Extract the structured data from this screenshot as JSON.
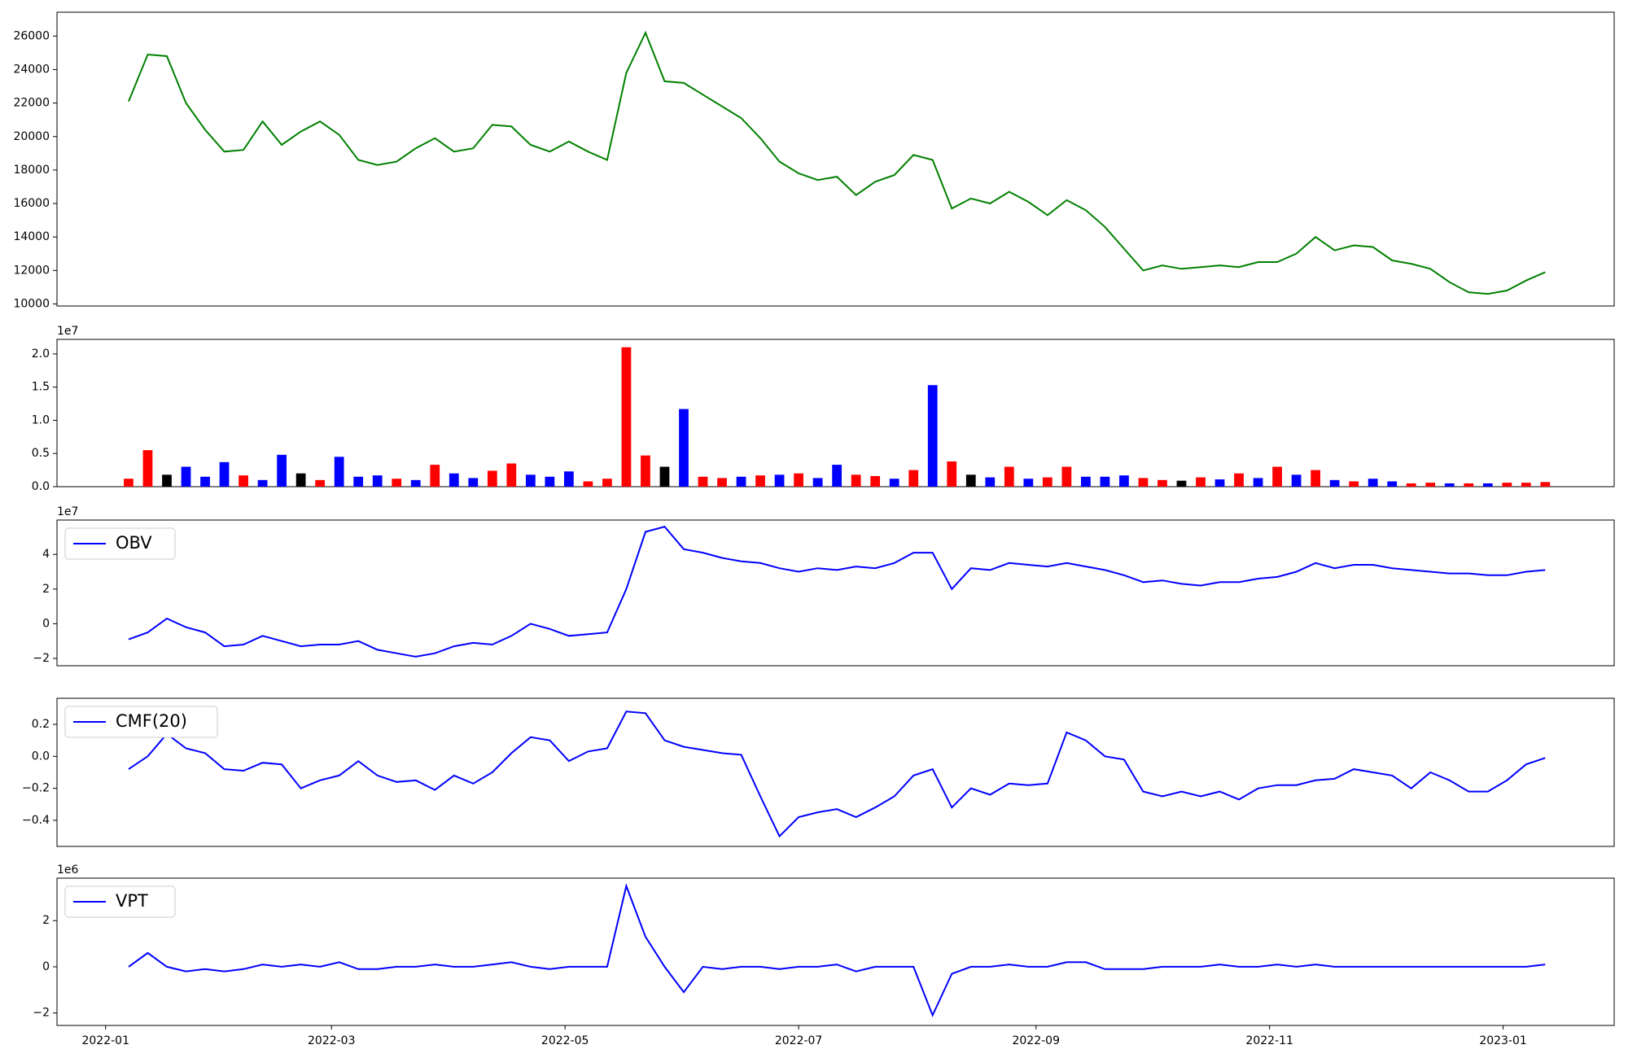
{
  "chart_data": [
    {
      "type": "line",
      "x": [
        6,
        11,
        16,
        21,
        26,
        31,
        36,
        41,
        46,
        51,
        56,
        61,
        66,
        71,
        76,
        81,
        86,
        91,
        96,
        101,
        106,
        111,
        116,
        121,
        126,
        131,
        136,
        141,
        146,
        151,
        156,
        161,
        166,
        171,
        176,
        181,
        186,
        191,
        196,
        201,
        206,
        211,
        216,
        221,
        226,
        231,
        236,
        241,
        246,
        251,
        256,
        261,
        266,
        271,
        276,
        281,
        286,
        291,
        296,
        301,
        306,
        311,
        316,
        321,
        326,
        331,
        336,
        341,
        346,
        351,
        356,
        361,
        366,
        371,
        376
      ],
      "values": [
        22100,
        24900,
        24800,
        22000,
        20400,
        19100,
        19200,
        20900,
        19500,
        20300,
        20900,
        20100,
        18600,
        18300,
        18500,
        19300,
        19900,
        19100,
        19300,
        20700,
        20600,
        19500,
        19100,
        19700,
        19100,
        18600,
        23800,
        26200,
        23300,
        23200,
        22500,
        21800,
        21100,
        19900,
        18500,
        17800,
        17400,
        17600,
        16500,
        17300,
        17700,
        18900,
        18600,
        15700,
        16300,
        16000,
        16700,
        16100,
        15300,
        16200,
        15600,
        14600,
        13300,
        12000,
        12300,
        12100,
        12200,
        12300,
        12200,
        12500,
        12500,
        13000,
        14000,
        13200,
        13500,
        13400,
        12600,
        12400,
        12100,
        11300,
        10700,
        10600,
        10800,
        11400,
        11900
      ],
      "color": "green",
      "xlim": [
        -12.7,
        394
      ],
      "ylim": [
        9876,
        27426
      ],
      "yticks": [
        10000,
        12000,
        14000,
        16000,
        18000,
        20000,
        22000,
        24000,
        26000
      ]
    },
    {
      "type": "bar",
      "axis_multiplier": "1e7",
      "x": [
        6,
        11,
        16,
        21,
        26,
        31,
        36,
        41,
        46,
        51,
        56,
        61,
        66,
        71,
        76,
        81,
        86,
        91,
        96,
        101,
        106,
        111,
        116,
        121,
        126,
        131,
        136,
        141,
        146,
        151,
        156,
        161,
        166,
        171,
        176,
        181,
        186,
        191,
        196,
        201,
        206,
        211,
        216,
        221,
        226,
        231,
        236,
        241,
        246,
        251,
        256,
        261,
        266,
        271,
        276,
        281,
        286,
        291,
        296,
        301,
        306,
        311,
        316,
        321,
        326,
        331,
        336,
        341,
        346,
        351,
        356,
        361,
        366,
        371,
        376
      ],
      "values": [
        0.12,
        0.55,
        0.18,
        0.3,
        0.15,
        0.37,
        0.17,
        0.1,
        0.48,
        0.2,
        0.1,
        0.45,
        0.15,
        0.17,
        0.12,
        0.1,
        0.33,
        0.2,
        0.13,
        0.24,
        0.35,
        0.18,
        0.15,
        0.23,
        0.08,
        0.12,
        2.1,
        0.47,
        0.3,
        1.17,
        0.15,
        0.13,
        0.15,
        0.17,
        0.18,
        0.2,
        0.13,
        0.33,
        0.18,
        0.16,
        0.12,
        0.25,
        1.53,
        0.38,
        0.18,
        0.14,
        0.3,
        0.12,
        0.14,
        0.3,
        0.15,
        0.15,
        0.17,
        0.13,
        0.1,
        0.09,
        0.14,
        0.11,
        0.2,
        0.13,
        0.3,
        0.18,
        0.25,
        0.1,
        0.08,
        0.12,
        0.08,
        0.05,
        0.06,
        0.05,
        0.05,
        0.05,
        0.06,
        0.06,
        0.07
      ],
      "colors": [
        "red",
        "red",
        "black",
        "blue",
        "blue",
        "blue",
        "red",
        "blue",
        "blue",
        "black",
        "red",
        "blue",
        "blue",
        "blue",
        "red",
        "blue",
        "red",
        "blue",
        "blue",
        "red",
        "red",
        "blue",
        "blue",
        "blue",
        "red",
        "red",
        "red",
        "red",
        "black",
        "blue",
        "red",
        "red",
        "blue",
        "red",
        "blue",
        "red",
        "blue",
        "blue",
        "red",
        "red",
        "blue",
        "red",
        "blue",
        "red",
        "black",
        "blue",
        "red",
        "blue",
        "red",
        "red",
        "blue",
        "blue",
        "blue",
        "red",
        "red",
        "black",
        "red",
        "blue",
        "red",
        "blue",
        "red",
        "blue",
        "red",
        "blue",
        "red",
        "blue",
        "blue",
        "red",
        "red",
        "blue",
        "red",
        "blue",
        "red",
        "red",
        "red"
      ],
      "xlim": [
        -12.7,
        394
      ],
      "ylim": [
        0,
        2.219
      ],
      "yticks": [
        {
          "value": 0,
          "label": "0.0"
        },
        0.5,
        {
          "value": 1,
          "label": "1.0"
        },
        1.5,
        {
          "value": 2,
          "label": "2.0"
        }
      ]
    },
    {
      "type": "line",
      "axis_multiplier": "1e7",
      "legend": "upper left",
      "x": [
        6,
        11,
        16,
        21,
        26,
        31,
        36,
        41,
        46,
        51,
        56,
        61,
        66,
        71,
        76,
        81,
        86,
        91,
        96,
        101,
        106,
        111,
        116,
        121,
        126,
        131,
        136,
        141,
        146,
        151,
        156,
        161,
        166,
        171,
        176,
        181,
        186,
        191,
        196,
        201,
        206,
        211,
        216,
        221,
        226,
        231,
        236,
        241,
        246,
        251,
        256,
        261,
        266,
        271,
        276,
        281,
        286,
        291,
        296,
        301,
        306,
        311,
        316,
        321,
        326,
        331,
        336,
        341,
        346,
        351,
        356,
        361,
        366,
        371,
        376
      ],
      "series": [
        {
          "name": "OBV",
          "color": "blue",
          "values": [
            -0.9,
            -0.5,
            0.3,
            -0.2,
            -0.5,
            -1.3,
            -1.2,
            -0.7,
            -1.0,
            -1.3,
            -1.2,
            -1.2,
            -1.0,
            -1.5,
            -1.7,
            -1.9,
            -1.7,
            -1.3,
            -1.1,
            -1.2,
            -0.7,
            0.0,
            -0.3,
            -0.7,
            -0.6,
            -0.5,
            2.0,
            5.3,
            5.6,
            4.3,
            4.1,
            3.8,
            3.6,
            3.5,
            3.2,
            3.0,
            3.2,
            3.1,
            3.3,
            3.2,
            3.5,
            4.1,
            4.1,
            2.0,
            3.2,
            3.1,
            3.5,
            3.4,
            3.3,
            3.5,
            3.3,
            3.1,
            2.8,
            2.4,
            2.5,
            2.3,
            2.2,
            2.4,
            2.4,
            2.6,
            2.7,
            3.0,
            3.5,
            3.2,
            3.4,
            3.4,
            3.2,
            3.1,
            3.0,
            2.9,
            2.9,
            2.8,
            2.8,
            3.0,
            3.1
          ]
        }
      ],
      "xlim": [
        -12.7,
        394
      ],
      "ylim": [
        -2.42,
        5.98
      ],
      "yticks": [
        {
          "value": -2,
          "label": "−2"
        },
        0,
        2,
        4
      ]
    },
    {
      "type": "line",
      "legend": "upper left",
      "x": [
        6,
        11,
        16,
        21,
        26,
        31,
        36,
        41,
        46,
        51,
        56,
        61,
        66,
        71,
        76,
        81,
        86,
        91,
        96,
        101,
        106,
        111,
        116,
        121,
        126,
        131,
        136,
        141,
        146,
        151,
        156,
        161,
        166,
        171,
        176,
        181,
        186,
        191,
        196,
        201,
        206,
        211,
        216,
        221,
        226,
        231,
        236,
        241,
        246,
        251,
        256,
        261,
        266,
        271,
        276,
        281,
        286,
        291,
        296,
        301,
        306,
        311,
        316,
        321,
        326,
        331,
        336,
        341,
        346,
        351,
        356,
        361,
        366,
        371,
        376
      ],
      "series": [
        {
          "name": "CMF(20)",
          "color": "blue",
          "values": [
            -0.08,
            0.0,
            0.14,
            0.05,
            0.02,
            -0.08,
            -0.09,
            -0.04,
            -0.05,
            -0.2,
            -0.15,
            -0.12,
            -0.03,
            -0.12,
            -0.16,
            -0.15,
            -0.21,
            -0.12,
            -0.17,
            -0.1,
            0.02,
            0.12,
            0.1,
            -0.03,
            0.03,
            0.05,
            0.28,
            0.27,
            0.1,
            0.06,
            0.04,
            0.02,
            0.01,
            -0.25,
            -0.5,
            -0.38,
            -0.35,
            -0.33,
            -0.38,
            -0.32,
            -0.25,
            -0.12,
            -0.08,
            -0.32,
            -0.2,
            -0.24,
            -0.17,
            -0.18,
            -0.17,
            0.15,
            0.1,
            0.0,
            -0.02,
            -0.22,
            -0.25,
            -0.22,
            -0.25,
            -0.22,
            -0.27,
            -0.2,
            -0.18,
            -0.18,
            -0.15,
            -0.14,
            -0.08,
            -0.1,
            -0.12,
            -0.2,
            -0.1,
            -0.15,
            -0.22,
            -0.22,
            -0.15,
            -0.05,
            -0.01
          ]
        }
      ],
      "xlim": [
        -12.7,
        394
      ],
      "ylim": [
        -0.563,
        0.363
      ],
      "yticks": [
        {
          "value": -0.4,
          "label": "−0.4"
        },
        {
          "value": -0.2,
          "label": "−0.2"
        },
        {
          "value": 0,
          "label": "0.0"
        },
        0.2
      ]
    },
    {
      "type": "line",
      "axis_multiplier": "1e6",
      "legend": "upper left",
      "x": [
        6,
        11,
        16,
        21,
        26,
        31,
        36,
        41,
        46,
        51,
        56,
        61,
        66,
        71,
        76,
        81,
        86,
        91,
        96,
        101,
        106,
        111,
        116,
        121,
        126,
        131,
        136,
        141,
        146,
        151,
        156,
        161,
        166,
        171,
        176,
        181,
        186,
        191,
        196,
        201,
        206,
        211,
        216,
        221,
        226,
        231,
        236,
        241,
        246,
        251,
        256,
        261,
        266,
        271,
        276,
        281,
        286,
        291,
        296,
        301,
        306,
        311,
        316,
        321,
        326,
        331,
        336,
        341,
        346,
        351,
        356,
        361,
        366,
        371,
        376
      ],
      "series": [
        {
          "name": "VPT",
          "color": "blue",
          "values": [
            0.0,
            0.6,
            0.0,
            -0.2,
            -0.1,
            -0.2,
            -0.1,
            0.1,
            0.0,
            0.1,
            0.0,
            0.2,
            -0.1,
            -0.1,
            0.0,
            0.0,
            0.1,
            0.0,
            0.0,
            0.1,
            0.2,
            0.0,
            -0.1,
            0.0,
            0.0,
            0.0,
            3.5,
            1.3,
            0.0,
            -1.1,
            0.0,
            -0.1,
            0.0,
            0.0,
            -0.1,
            0.0,
            0.0,
            0.1,
            -0.2,
            0.0,
            0.0,
            0.0,
            -2.1,
            -0.3,
            0.0,
            0.0,
            0.1,
            0.0,
            0.0,
            0.2,
            0.2,
            -0.1,
            -0.1,
            -0.1,
            0.0,
            0.0,
            0.0,
            0.1,
            0.0,
            0.0,
            0.1,
            0.0,
            0.1,
            0.0,
            0.0,
            0.0,
            0.0,
            0.0,
            0.0,
            0.0,
            0.0,
            0.0,
            0.0,
            0.0,
            0.1
          ]
        }
      ],
      "xlim": [
        -12.7,
        394
      ],
      "ylim": [
        -2.54,
        3.84
      ],
      "yticks": [
        {
          "value": -2,
          "label": "−2"
        },
        0,
        2
      ],
      "xticks": [
        {
          "value": 0,
          "label": "2022-01"
        },
        {
          "value": 59,
          "label": "2022-03"
        },
        {
          "value": 120,
          "label": "2022-05"
        },
        {
          "value": 181,
          "label": "2022-07"
        },
        {
          "value": 243,
          "label": "2022-09"
        },
        {
          "value": 304,
          "label": "2022-11"
        },
        {
          "value": 365,
          "label": "2023-01"
        }
      ]
    }
  ]
}
